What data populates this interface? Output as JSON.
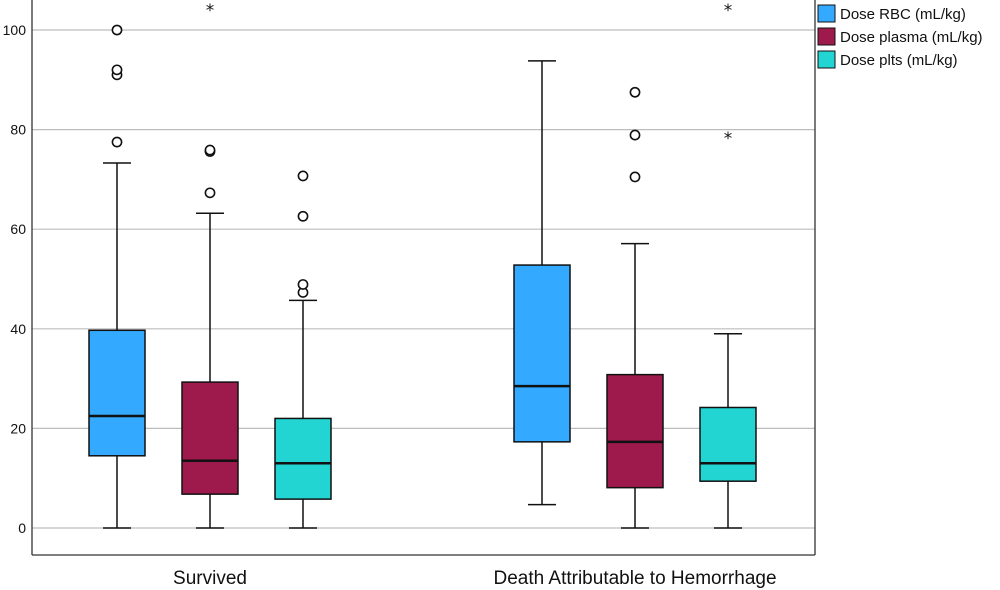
{
  "chart_data": {
    "type": "boxplot",
    "title": "",
    "xlabel": "",
    "ylabel": "",
    "ylim": [
      0,
      100
    ],
    "yticks": [
      0,
      20,
      40,
      60,
      80,
      100
    ],
    "grid": true,
    "legend_position": "top-right",
    "categories": [
      "Survived",
      "Death Attributable to Hemorrhage"
    ],
    "series": [
      {
        "name": "Dose RBC (mL/kg)",
        "color": "#33aaff",
        "boxes": [
          {
            "min": 0,
            "q1": 14.5,
            "median": 22.5,
            "q3": 39.7,
            "max": 73.3,
            "outliers": [
              77.5,
              91,
              92,
              100
            ],
            "extremes": []
          },
          {
            "min": 4.7,
            "q1": 17.3,
            "median": 28.5,
            "q3": 52.8,
            "max": 93.8,
            "outliers": [],
            "extremes": []
          }
        ]
      },
      {
        "name": "Dose plasma (mL/kg)",
        "color": "#9e1a4c",
        "boxes": [
          {
            "min": 0,
            "q1": 6.8,
            "median": 13.5,
            "q3": 29.3,
            "max": 63.2,
            "outliers": [
              67.3,
              75.6,
              75.9
            ],
            "extremes": [
              104.6
            ]
          },
          {
            "min": 0,
            "q1": 8.1,
            "median": 17.3,
            "q3": 30.8,
            "max": 57.1,
            "outliers": [
              70.5,
              78.9,
              87.5
            ],
            "extremes": []
          }
        ]
      },
      {
        "name": "Dose plts (mL/kg)",
        "color": "#22d4d2",
        "boxes": [
          {
            "min": 0,
            "q1": 5.8,
            "median": 13.0,
            "q3": 22.0,
            "max": 45.7,
            "outliers": [
              47.3,
              48.9,
              62.6,
              70.7
            ],
            "extremes": []
          },
          {
            "min": 0,
            "q1": 9.4,
            "median": 13.0,
            "q3": 24.2,
            "max": 39.0,
            "outliers": [],
            "extremes": [
              78.9,
              104.6
            ]
          }
        ]
      }
    ]
  }
}
